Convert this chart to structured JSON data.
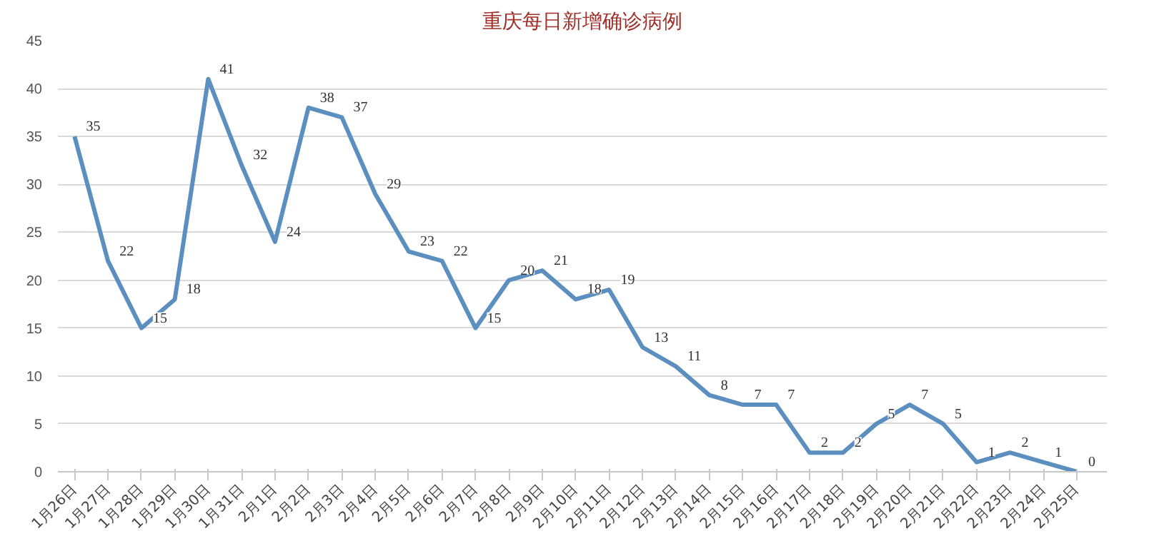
{
  "chart_data": {
    "type": "line",
    "title": "重庆每日新增确诊病例",
    "categories": [
      "1月26日",
      "1月27日",
      "1月28日",
      "1月29日",
      "1月30日",
      "1月31日",
      "2月1日",
      "2月2日",
      "2月3日",
      "2月4日",
      "2月5日",
      "2月6日",
      "2月7日",
      "2月8日",
      "2月9日",
      "2月10日",
      "2月11日",
      "2月12日",
      "2月13日",
      "2月14日",
      "2月15日",
      "2月16日",
      "2月17日",
      "2月18日",
      "2月19日",
      "2月20日",
      "2月21日",
      "2月22日",
      "2月23日",
      "2月24日",
      "2月25日"
    ],
    "series": [
      {
        "color": "#5b8fc0",
        "values": [
          35,
          22,
          15,
          18,
          41,
          32,
          24,
          38,
          37,
          29,
          23,
          22,
          15,
          20,
          21,
          18,
          19,
          13,
          11,
          8,
          7,
          7,
          2,
          2,
          5,
          7,
          5,
          1,
          2,
          1,
          0
        ]
      }
    ],
    "ylim": [
      0,
      45
    ],
    "yticks": [
      0,
      5,
      10,
      15,
      20,
      25,
      30,
      35,
      40,
      45
    ],
    "grid": "y",
    "data_labels": true,
    "marker": "none",
    "line_style": "solid"
  }
}
